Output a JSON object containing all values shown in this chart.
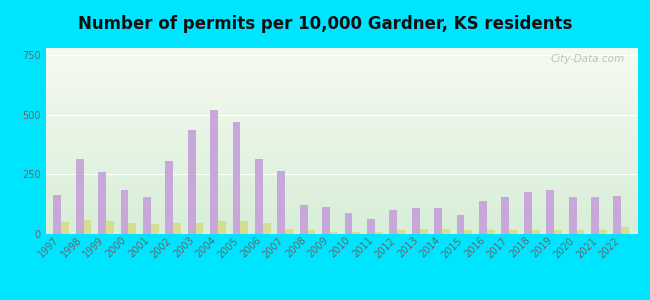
{
  "title": "Number of permits per 10,000 Gardner, KS residents",
  "years": [
    1997,
    1998,
    1999,
    2000,
    2001,
    2002,
    2003,
    2004,
    2005,
    2006,
    2007,
    2008,
    2009,
    2010,
    2011,
    2012,
    2013,
    2014,
    2015,
    2016,
    2017,
    2018,
    2019,
    2020,
    2021,
    2022
  ],
  "gardner_values": [
    165,
    315,
    260,
    185,
    155,
    305,
    435,
    520,
    470,
    315,
    265,
    120,
    115,
    90,
    65,
    100,
    110,
    110,
    80,
    140,
    155,
    175,
    185,
    155,
    155,
    160
  ],
  "kansas_values": [
    50,
    60,
    55,
    45,
    40,
    45,
    45,
    55,
    55,
    45,
    20,
    15,
    10,
    10,
    10,
    15,
    20,
    20,
    15,
    15,
    15,
    15,
    15,
    15,
    15,
    30
  ],
  "gardner_color": "#c8a8d8",
  "kansas_color": "#d4dd90",
  "ylim": [
    0,
    780
  ],
  "yticks": [
    0,
    250,
    500,
    750
  ],
  "outer_bg": "#00e5ff",
  "plot_bg_color": "#e8f5e8",
  "title_fontsize": 12,
  "tick_fontsize": 7,
  "legend_fontsize": 8.5,
  "bar_width": 0.35,
  "watermark": "City-Data.com"
}
